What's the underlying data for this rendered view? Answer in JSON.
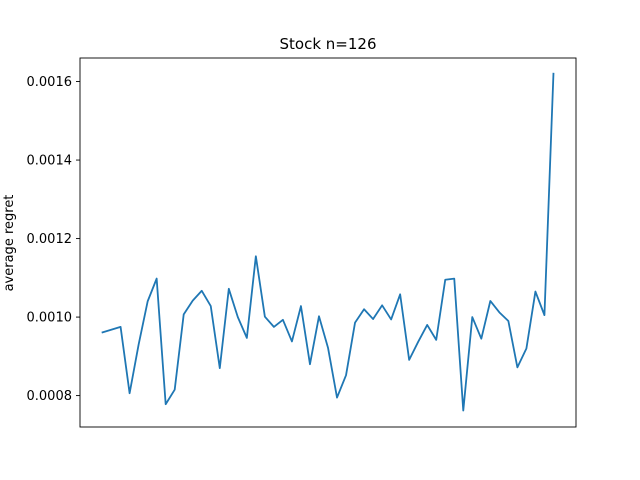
{
  "chart_data": {
    "type": "line",
    "title": "Stock n=126",
    "xlabel": "",
    "ylabel": "average regret",
    "ylim": [
      0.00072,
      0.00166
    ],
    "xlim": [
      -2.5,
      52.5
    ],
    "yticks": [
      0.0008,
      0.001,
      0.0012,
      0.0014,
      0.0016
    ],
    "ytick_labels": [
      "0.0008",
      "0.0010",
      "0.0012",
      "0.0014",
      "0.0016"
    ],
    "grid": false,
    "color": "#1f77b4",
    "series": [
      {
        "x": [
          0,
          1,
          2,
          3,
          4,
          5,
          6,
          7,
          8,
          9,
          10,
          11,
          12,
          13,
          14,
          15,
          16,
          17,
          18,
          19,
          20,
          21,
          22,
          23,
          24,
          25,
          26,
          27,
          28,
          29,
          30,
          31,
          32,
          33,
          34,
          35,
          36,
          37,
          38,
          39,
          40,
          41,
          42,
          43,
          44,
          45,
          46,
          47,
          48,
          49,
          50
        ],
        "values": [
          0.000961,
          0.000968,
          0.000975,
          0.000806,
          0.00093,
          0.00104,
          0.001098,
          0.000778,
          0.000815,
          0.001007,
          0.001042,
          0.001067,
          0.001028,
          0.00087,
          0.001072,
          0.001,
          0.000947,
          0.001155,
          0.001001,
          0.000975,
          0.000993,
          0.000938,
          0.001028,
          0.00088,
          0.001002,
          0.000922,
          0.000795,
          0.000852,
          0.000986,
          0.00102,
          0.000995,
          0.00103,
          0.000994,
          0.001058,
          0.000891,
          0.000937,
          0.00098,
          0.000942,
          0.001095,
          0.001098,
          0.000762,
          0.001,
          0.000945,
          0.001041,
          0.001012,
          0.00099,
          0.000872,
          0.00092,
          0.001065,
          0.001005,
          0.00162
        ]
      }
    ]
  }
}
